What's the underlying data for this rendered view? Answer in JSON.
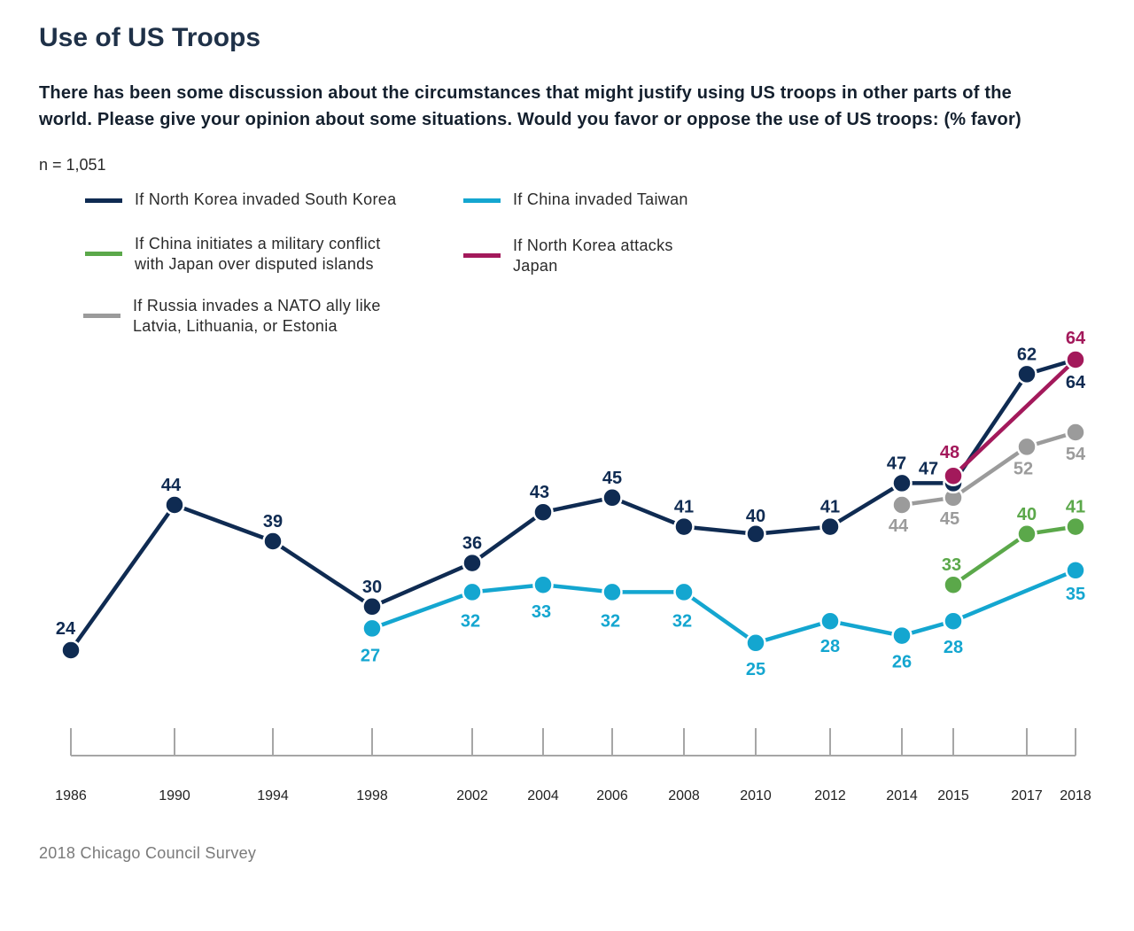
{
  "title": "Use of US Troops",
  "subtitle": "There has been some discussion about the circumstances that might justify using US troops in other parts of the world. Please give your opinion about some situations. Would you favor or oppose the use of US troops: (% favor)",
  "note": "n = 1,051",
  "footer": "2018 Chicago Council Survey",
  "chart_data": {
    "type": "line",
    "x": [
      1986,
      1990,
      1994,
      1998,
      2002,
      2004,
      2006,
      2008,
      2010,
      2012,
      2014,
      2015,
      2017,
      2018
    ],
    "tick_labels": [
      "1986",
      "1990",
      "1994",
      "1998",
      "2002",
      "2004",
      "2006",
      "2008",
      "2010",
      "2012",
      "2014",
      "2015",
      "2017",
      "2018"
    ],
    "grid": false,
    "legend_position": "top-left",
    "series": [
      {
        "name": "If North Korea invaded South Korea",
        "color": "#0f2b52",
        "points": [
          {
            "x": 1986,
            "y": 24
          },
          {
            "x": 1990,
            "y": 44
          },
          {
            "x": 1994,
            "y": 39
          },
          {
            "x": 1998,
            "y": 30
          },
          {
            "x": 2002,
            "y": 36
          },
          {
            "x": 2004,
            "y": 43
          },
          {
            "x": 2006,
            "y": 45
          },
          {
            "x": 2008,
            "y": 41
          },
          {
            "x": 2010,
            "y": 40
          },
          {
            "x": 2012,
            "y": 41
          },
          {
            "x": 2014,
            "y": 47
          },
          {
            "x": 2015,
            "y": 47
          },
          {
            "x": 2017,
            "y": 62
          },
          {
            "x": 2018,
            "y": 64
          }
        ]
      },
      {
        "name": "If China invaded Taiwan",
        "color": "#14a6d0",
        "points": [
          {
            "x": 1998,
            "y": 27
          },
          {
            "x": 2002,
            "y": 32
          },
          {
            "x": 2004,
            "y": 33
          },
          {
            "x": 2006,
            "y": 32
          },
          {
            "x": 2008,
            "y": 32
          },
          {
            "x": 2010,
            "y": 25
          },
          {
            "x": 2012,
            "y": 28
          },
          {
            "x": 2014,
            "y": 26
          },
          {
            "x": 2015,
            "y": 28
          },
          {
            "x": 2018,
            "y": 35
          }
        ]
      },
      {
        "name": "If China initiates a military conflict\nwith Japan over disputed islands",
        "color": "#5ba84a",
        "points": [
          {
            "x": 2015,
            "y": 33
          },
          {
            "x": 2017,
            "y": 40
          },
          {
            "x": 2018,
            "y": 41
          }
        ]
      },
      {
        "name": "If North Korea attacks\nJapan",
        "color": "#a3195b",
        "points": [
          {
            "x": 2015,
            "y": 48
          },
          {
            "x": 2018,
            "y": 64
          }
        ]
      },
      {
        "name": "If Russia invades a NATO ally like\nLatvia, Lithuania, or Estonia",
        "color": "#9b9b9b",
        "points": [
          {
            "x": 2014,
            "y": 44
          },
          {
            "x": 2015,
            "y": 45
          },
          {
            "x": 2017,
            "y": 52
          },
          {
            "x": 2018,
            "y": 54
          }
        ]
      }
    ]
  }
}
